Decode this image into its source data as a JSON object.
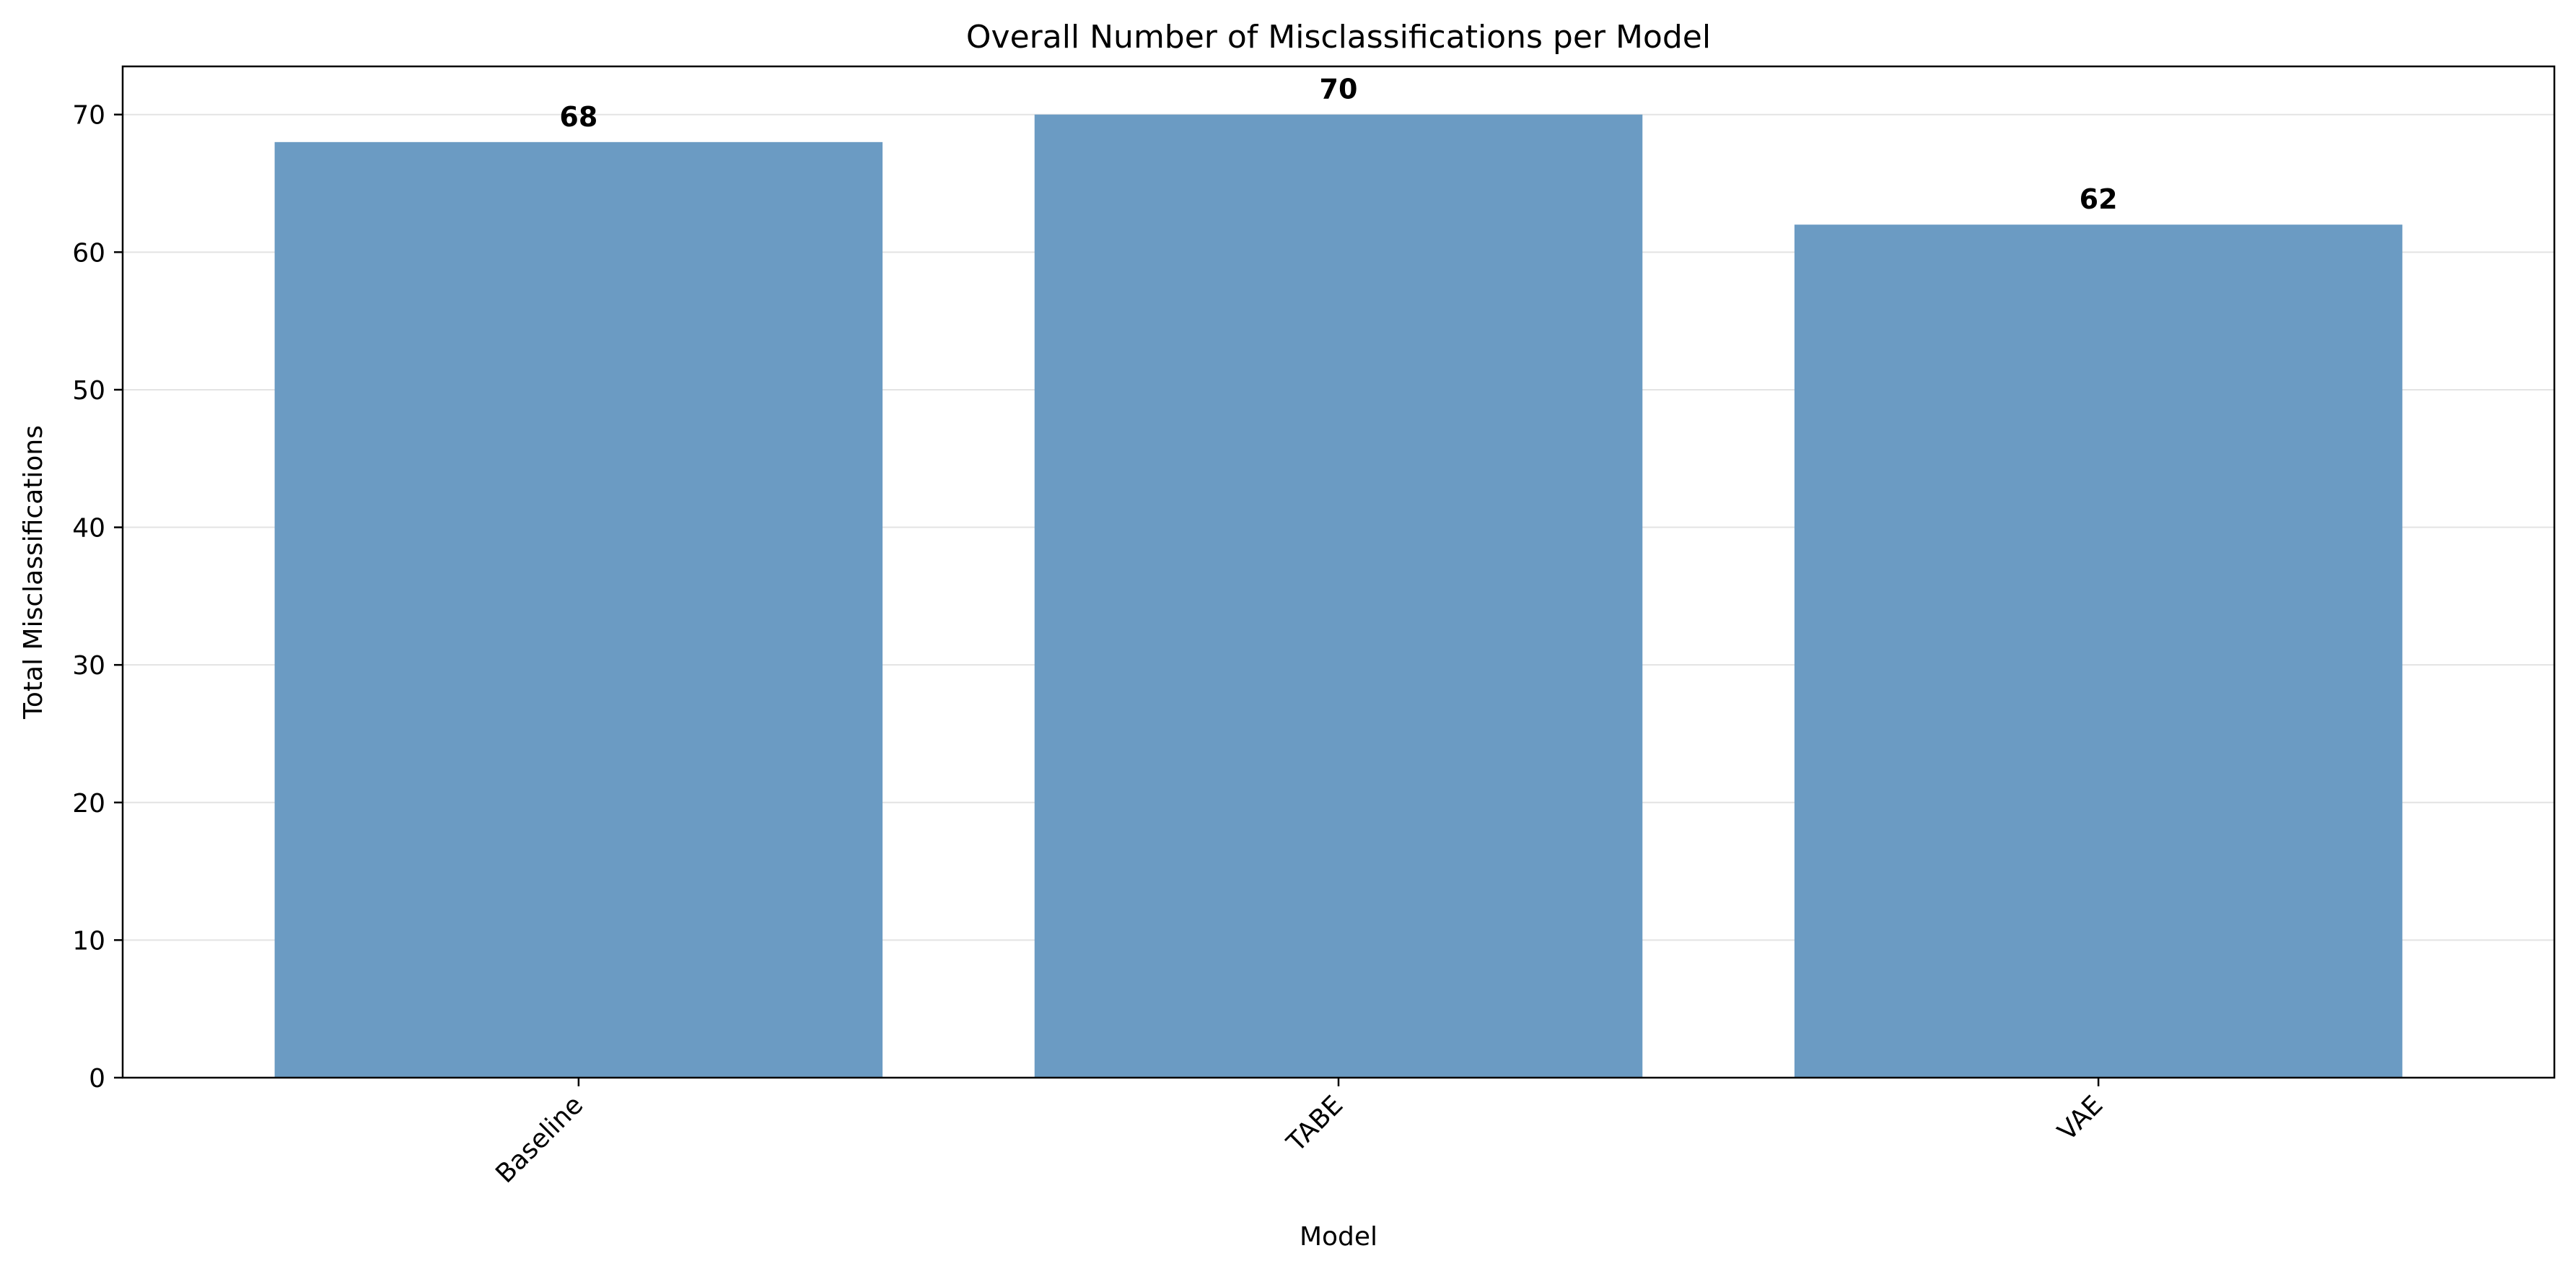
{
  "chart_data": {
    "type": "bar",
    "title": "Overall Number of Misclassifications per Model",
    "xlabel": "Model",
    "ylabel": "Total Misclassifications",
    "categories": [
      "Baseline",
      "TABE",
      "VAE"
    ],
    "values": [
      68,
      70,
      62
    ],
    "data_labels": [
      "68",
      "70",
      "62"
    ],
    "ylim": [
      0,
      73.5
    ],
    "yticks": [
      0,
      10,
      20,
      30,
      40,
      50,
      60,
      70
    ],
    "ytick_labels": [
      "0",
      "10",
      "20",
      "30",
      "40",
      "50",
      "60",
      "70"
    ],
    "grid": "y-major",
    "legend": "none",
    "xtick_rotation": 45,
    "bar_color": "#6b9bc3",
    "grid_color": "#e3e3e3"
  }
}
